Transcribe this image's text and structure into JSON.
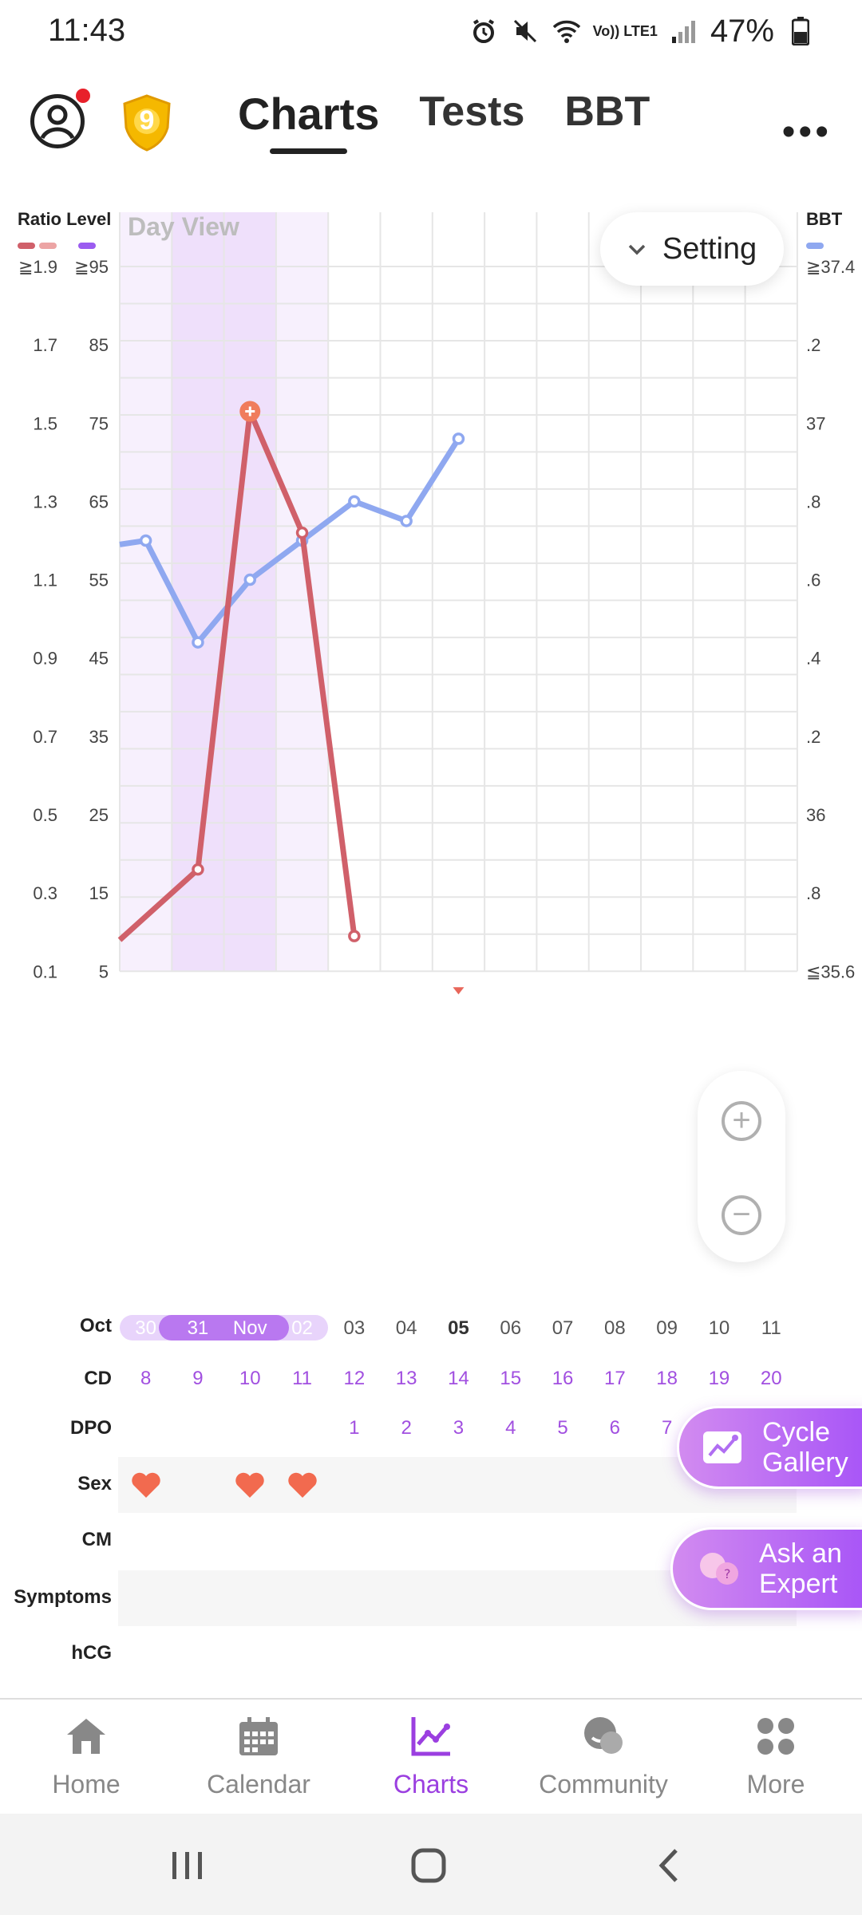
{
  "status_bar": {
    "time": "11:43",
    "network_label": "Vo)) LTE1",
    "battery": "47%"
  },
  "top_bar": {
    "tabs": [
      "Charts",
      "Tests",
      "BBT"
    ],
    "active_tab": "Charts",
    "badge_number": "9"
  },
  "chart": {
    "legend_left": "Ratio Level",
    "legend_right": "BBT",
    "view_label": "Day View",
    "setting_label": "Setting",
    "axis_ratio_ticks": [
      "≧1.9",
      "1.7",
      "1.5",
      "1.3",
      "1.1",
      "0.9",
      "0.7",
      "0.5",
      "0.3",
      "0.1"
    ],
    "axis_level_ticks": [
      "≧95",
      "85",
      "75",
      "65",
      "55",
      "45",
      "35",
      "25",
      "15",
      "5"
    ],
    "axis_bbt_ticks": [
      "≧37.4",
      ".2",
      "37",
      ".8",
      ".6",
      ".4",
      ".2",
      "36",
      ".8",
      "≦35.6"
    ],
    "colors": {
      "ratio_line": "#d0606a",
      "ratio_swatch2": "#eca4a4",
      "level_swatch": "#9b5cf0",
      "bbt_line": "#8fa8f0",
      "fertile_band": "#efe0fb",
      "fertile_band_light": "#f7f0fd",
      "peak_marker": "#f07c5c",
      "accent": "#a855f7"
    }
  },
  "chart_data": {
    "type": "line",
    "x": [
      "Oct 30",
      "Oct 31",
      "Nov 01",
      "Nov 02",
      "Nov 03",
      "Nov 04",
      "Nov 05",
      "Nov 06",
      "Nov 07",
      "Nov 08",
      "Nov 09",
      "Nov 10",
      "Nov 11"
    ],
    "series": [
      {
        "name": "Ratio Level",
        "axis": "left",
        "points": [
          {
            "x": "Oct 29",
            "y": 0.18
          },
          {
            "x": "Oct 31",
            "y": 0.36
          },
          {
            "x": "Nov 01",
            "y": 1.53
          },
          {
            "x": "Nov 02",
            "y": 1.22
          },
          {
            "x": "Nov 03",
            "y": 0.19
          }
        ],
        "peak": "Nov 01"
      },
      {
        "name": "BBT",
        "axis": "right",
        "points": [
          {
            "x": "Oct 29",
            "y": 36.69
          },
          {
            "x": "Oct 30",
            "y": 36.7
          },
          {
            "x": "Oct 31",
            "y": 36.44
          },
          {
            "x": "Nov 01",
            "y": 36.6
          },
          {
            "x": "Nov 02",
            "y": 36.7
          },
          {
            "x": "Nov 03",
            "y": 36.8
          },
          {
            "x": "Nov 04",
            "y": 36.75
          },
          {
            "x": "Nov 05",
            "y": 36.96
          }
        ]
      }
    ],
    "ylim_ratio": [
      0.1,
      1.9
    ],
    "ylim_level": [
      5,
      95
    ],
    "ylim_bbt": [
      35.6,
      37.4
    ],
    "fertile_window": [
      "Oct 31",
      "Nov 01"
    ],
    "fertile_light": [
      "Oct 30",
      "Nov 02"
    ],
    "grid": true
  },
  "date_row": {
    "month_start": "Oct",
    "days": [
      "30",
      "31",
      "Nov",
      "02",
      "03",
      "04",
      "05",
      "06",
      "07",
      "08",
      "09",
      "10",
      "11"
    ],
    "today_index": 6
  },
  "rows": {
    "cd_label": "CD",
    "cd_values": [
      "8",
      "9",
      "10",
      "11",
      "12",
      "13",
      "14",
      "15",
      "16",
      "17",
      "18",
      "19",
      "20"
    ],
    "dpo_label": "DPO",
    "dpo_values": [
      "",
      "",
      "",
      "",
      "1",
      "2",
      "3",
      "4",
      "5",
      "6",
      "7",
      "",
      ""
    ],
    "sex_label": "Sex",
    "sex_days": [
      0,
      2,
      3
    ],
    "cm_label": "CM",
    "symptoms_label": "Symptoms",
    "hcg_label": "hCG"
  },
  "fabs": {
    "cycle_gallery": "Cycle\nGallery",
    "ask_expert": "Ask an\nExpert"
  },
  "bottom_nav": {
    "items": [
      "Home",
      "Calendar",
      "Charts",
      "Community",
      "More"
    ],
    "active": "Charts"
  }
}
